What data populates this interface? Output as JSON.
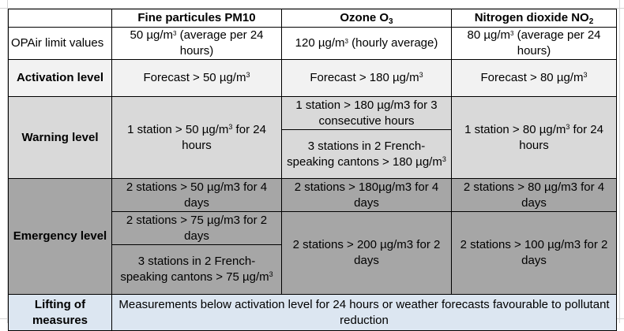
{
  "header": {
    "pm10": "Fine particules PM10",
    "ozone": "Ozone O",
    "ozone_sub": "3",
    "no2": "Nitrogen dioxide NO",
    "no2_sub": "2"
  },
  "limits": {
    "label": "OPAir limit values",
    "pm10": "50 µg/m",
    "pm10_sup": "3",
    "pm10_rest": " (average per 24 hours)",
    "ozone": "120 µg/m",
    "ozone_sup": "3",
    "ozone_rest": " (hourly average)",
    "no2": "80 µg/m",
    "no2_sup": "3",
    "no2_rest": " (average per 24 hours)"
  },
  "activation": {
    "label": "Activation level",
    "pm10": "Forecast > 50 µg/m",
    "pm10_sup": "3",
    "ozone": "Forecast > 180 µg/m",
    "ozone_sup": "3",
    "no2": "Forecast > 80 µg/m",
    "no2_sup": "3"
  },
  "warning": {
    "label": "Warning level",
    "pm10": "1 station > 50 µg/m",
    "pm10_sup": "3",
    "pm10_rest": " for 24 hours",
    "ozone_a": "1 station > 180 µg/m3 for 3 consecutive hours",
    "ozone_b": "3 stations in 2 French-speaking cantons > 180 µg/m",
    "ozone_b_sup": "3",
    "no2": "1 station > 80 µg/m",
    "no2_sup": "3",
    "no2_rest": " for 24 hours"
  },
  "emergency": {
    "label": "Emergency level",
    "pm10_a": "2 stations > 50 µg/m3 for 4 days",
    "pm10_b": "2 stations > 75 µg/m3 for 2 days",
    "pm10_c": "3 stations in 2 French-speaking cantons > 75 µg/m",
    "pm10_c_sup": "3",
    "ozone_a": "2 stations > 180µg/m3 for 4 days",
    "ozone_b": "2 stations > 200 µg/m3 for 2 days",
    "no2_a": "2 stations > 80 µg/m3 for 4 days",
    "no2_b": "2 stations > 100 µg/m3 for 2 days"
  },
  "lifting": {
    "label": "Lifting of measures",
    "text": "Measurements below activation level for 24 hours or weather forecasts favourable to pollutant reduction"
  },
  "colors": {
    "activation_bg": "#f2f2f2",
    "warning_bg": "#d9d9d9",
    "emergency_bg": "#a6a6a6",
    "lifting_bg": "#dce6f1"
  }
}
